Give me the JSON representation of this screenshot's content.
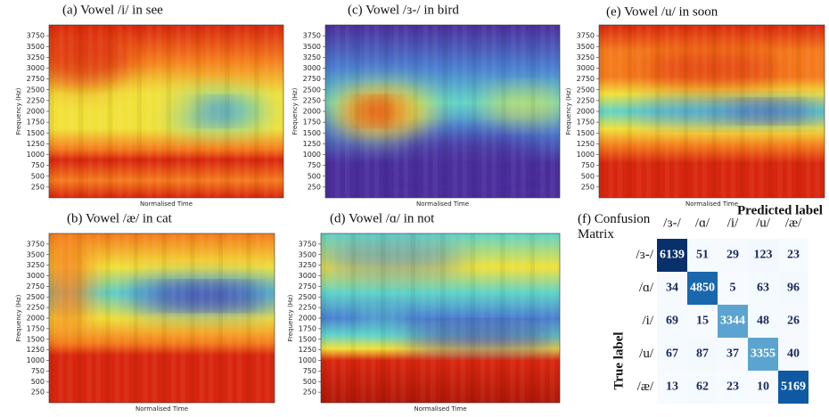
{
  "panels": [
    {
      "title": "(a) Vowel /i/ in see",
      "ylabel": "Frequency (Hz)",
      "xlabel": "Normalised Time",
      "ylim": [
        0,
        4000
      ],
      "yticks": [
        250,
        500,
        750,
        1000,
        1250,
        1500,
        1750,
        2000,
        2250,
        2500,
        2750,
        3000,
        3250,
        3500,
        3750
      ]
    },
    {
      "title": "(c) Vowel /ɜ-/ in bird",
      "ylabel": "Frequency (Hz)",
      "xlabel": "Normalised Time",
      "ylim": [
        0,
        4000
      ],
      "yticks": [
        250,
        500,
        750,
        1000,
        1250,
        1500,
        1750,
        2000,
        2250,
        2500,
        2750,
        3000,
        3250,
        3500,
        3750
      ]
    },
    {
      "title": "(e) Vowel /u/ in soon",
      "ylabel": "Frequency (Hz)",
      "xlabel": "Normalised Time",
      "ylim": [
        0,
        4000
      ],
      "yticks": [
        250,
        500,
        750,
        1000,
        1250,
        1500,
        1750,
        2000,
        2250,
        2500,
        2750,
        3000,
        3250,
        3500,
        3750
      ]
    },
    {
      "title": "(b) Vowel /æ/ in cat",
      "ylabel": "Frequency (Hz)",
      "xlabel": "Normalised Time",
      "ylim": [
        0,
        4000
      ],
      "yticks": [
        250,
        500,
        750,
        1000,
        1250,
        1500,
        1750,
        2000,
        2250,
        2500,
        2750,
        3000,
        3250,
        3500,
        3750
      ]
    },
    {
      "title": "(d) Vowel /ɑ/ in not",
      "ylabel": "Frequency (Hz)",
      "xlabel": "Normalised Time",
      "ylim": [
        0,
        4000
      ],
      "yticks": [
        250,
        500,
        750,
        1000,
        1250,
        1500,
        1750,
        2000,
        2250,
        2500,
        2750,
        3000,
        3250,
        3500,
        3750
      ]
    }
  ],
  "confusion": {
    "title": "(f) Confusion Matrix",
    "xlabel": "Predicted label",
    "ylabel": "True label",
    "labels": [
      "/ɜ-/",
      "/ɑ/",
      "/i/",
      "/u/",
      "/æ/"
    ],
    "values": [
      [
        6139,
        51,
        29,
        123,
        23
      ],
      [
        34,
        4850,
        5,
        63,
        96
      ],
      [
        69,
        15,
        3344,
        48,
        26
      ],
      [
        67,
        87,
        37,
        3355,
        40
      ],
      [
        13,
        62,
        23,
        10,
        5169
      ]
    ]
  }
}
